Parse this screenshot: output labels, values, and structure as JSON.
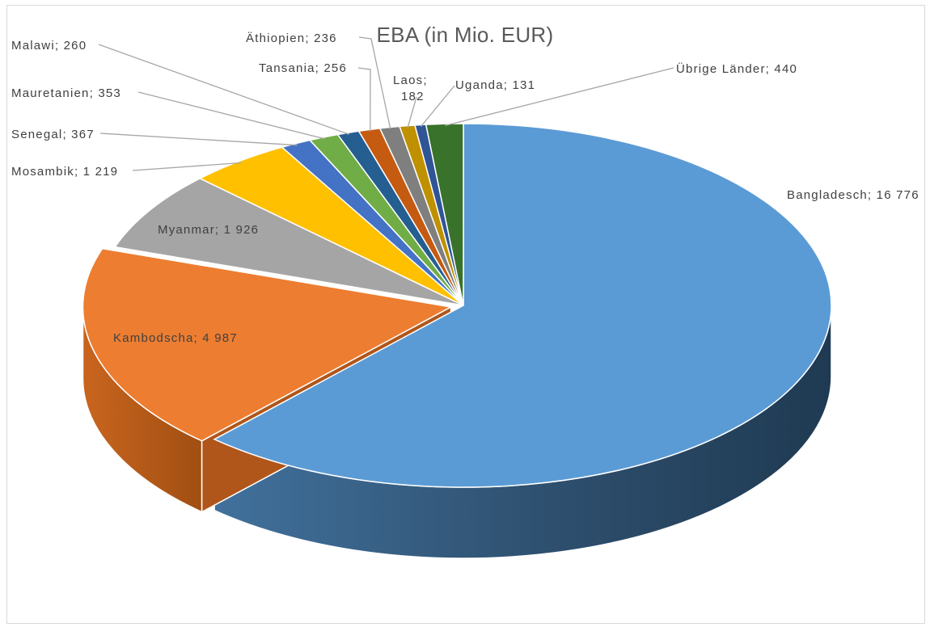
{
  "chart_data": {
    "type": "pie",
    "title": "EBA (in Mio. EUR)",
    "three_d": true,
    "legend": "none",
    "slices": [
      {
        "name": "Bangladesch",
        "value": 16776,
        "label": "Bangladesch; 16 776",
        "color": "#5b9bd5"
      },
      {
        "name": "Kambodscha",
        "value": 4987,
        "label": "Kambodscha; 4 987",
        "color": "#ed7d31",
        "exploded": true
      },
      {
        "name": "Myanmar",
        "value": 1926,
        "label": "Myanmar; 1 926",
        "color": "#a5a5a5"
      },
      {
        "name": "Mosambik",
        "value": 1219,
        "label": "Mosambik; 1 219",
        "color": "#ffc000"
      },
      {
        "name": "Senegal",
        "value": 367,
        "label": "Senegal; 367",
        "color": "#4472c4"
      },
      {
        "name": "Mauretanien",
        "value": 353,
        "label": "Mauretanien; 353",
        "color": "#70ad47"
      },
      {
        "name": "Malawi",
        "value": 260,
        "label": "Malawi; 260",
        "color": "#255e91"
      },
      {
        "name": "Tansania",
        "value": 256,
        "label": "Tansania; 256",
        "color": "#c55a11"
      },
      {
        "name": "Äthiopien",
        "value": 236,
        "label": "Äthiopien; 236",
        "color": "#7f7f7f"
      },
      {
        "name": "Laos",
        "value": 182,
        "label": "Laos; 182",
        "color": "#bf9000"
      },
      {
        "name": "Uganda",
        "value": 131,
        "label": "Uganda; 131",
        "color": "#2f5597"
      },
      {
        "name": "Übrige Länder",
        "value": 440,
        "label": "Übrige Länder; 440",
        "color": "#38722b"
      }
    ]
  }
}
